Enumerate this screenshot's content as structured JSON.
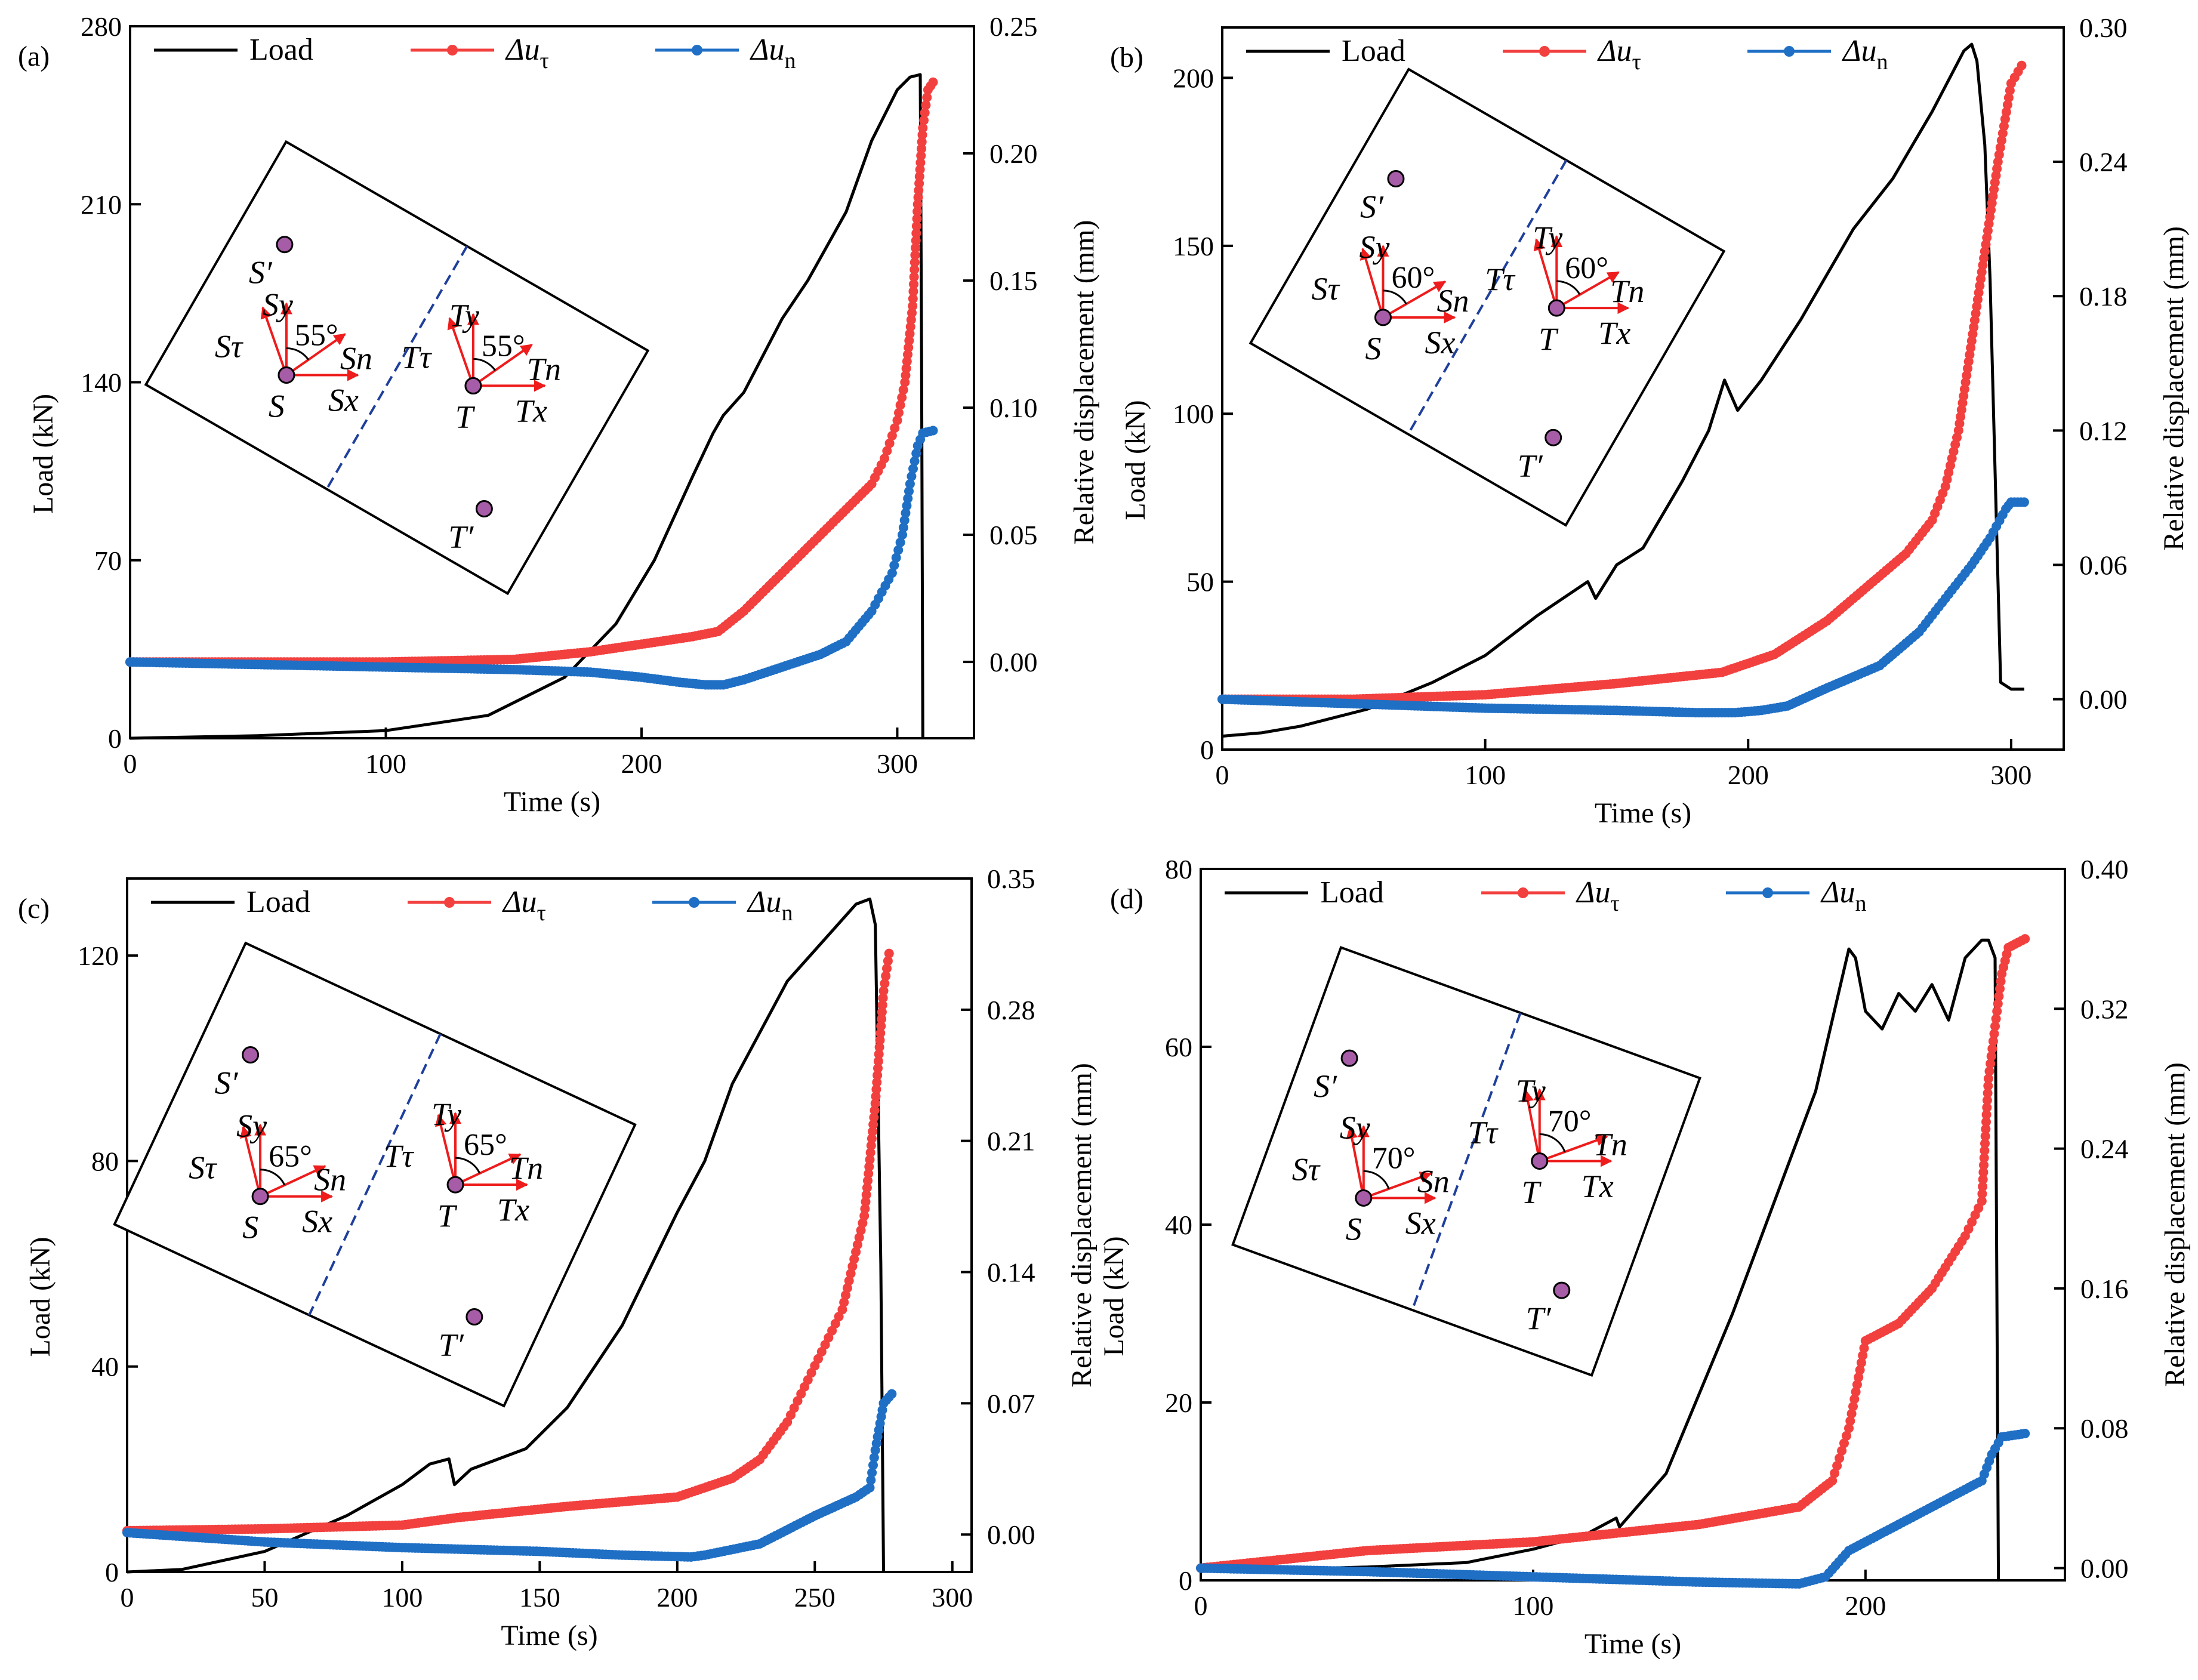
{
  "colors": {
    "load": "#000000",
    "du_t": "#f2403f",
    "du_n": "#1f6fc5",
    "arrow": "#ee1c1c",
    "point": "#a65ca6",
    "dash": "#1f3f9c"
  },
  "chart_data": [
    {
      "type": "line",
      "panel_label": "(a)",
      "xlabel": "Time (s)",
      "ylabel": "Load (kN)",
      "y2label": "Relative displacement (mm)",
      "xlim": [
        0,
        330
      ],
      "ylim": [
        0,
        280
      ],
      "y2lim": [
        -0.03,
        0.25
      ],
      "xticks": [
        0,
        100,
        200,
        300
      ],
      "yticks": [
        0,
        70,
        140,
        210,
        280
      ],
      "y2ticks": [
        0.0,
        0.05,
        0.1,
        0.15,
        0.2,
        0.25
      ],
      "y2tick_labels": [
        "0.00",
        "0.05",
        "0.10",
        "0.15",
        "0.20",
        "0.25"
      ],
      "legend": [
        "Load",
        "Δu",
        "Δu"
      ],
      "legend_subscripts": [
        "",
        "τ",
        "n"
      ],
      "angle_label": "55°",
      "series": [
        {
          "name": "Load",
          "axis": "left",
          "x": [
            0,
            50,
            100,
            140,
            170,
            190,
            205,
            220,
            228,
            232,
            240,
            255,
            265,
            280,
            290,
            300,
            305,
            309,
            309.5,
            310
          ],
          "y": [
            0,
            1,
            3,
            9,
            24,
            45,
            70,
            103,
            120,
            127,
            136,
            165,
            180,
            207,
            235,
            255,
            260,
            261,
            150,
            0
          ]
        },
        {
          "name": "Δuτ",
          "axis": "right",
          "x": [
            0,
            50,
            100,
            150,
            180,
            200,
            220,
            230,
            240,
            250,
            260,
            270,
            280,
            290,
            295,
            300,
            303,
            306,
            308,
            310,
            312,
            314
          ],
          "y": [
            0.0,
            0.0,
            0.0,
            0.001,
            0.004,
            0.007,
            0.01,
            0.012,
            0.02,
            0.03,
            0.04,
            0.05,
            0.06,
            0.07,
            0.08,
            0.095,
            0.11,
            0.14,
            0.18,
            0.21,
            0.225,
            0.228
          ]
        },
        {
          "name": "Δun",
          "axis": "right",
          "x": [
            0,
            50,
            100,
            150,
            180,
            200,
            215,
            225,
            232,
            240,
            255,
            270,
            280,
            290,
            298,
            302,
            305,
            308,
            310,
            314
          ],
          "y": [
            0.0,
            -0.001,
            -0.002,
            -0.003,
            -0.004,
            -0.006,
            -0.008,
            -0.009,
            -0.009,
            -0.007,
            -0.002,
            0.003,
            0.008,
            0.02,
            0.035,
            0.05,
            0.07,
            0.085,
            0.09,
            0.091
          ]
        }
      ]
    },
    {
      "type": "line",
      "panel_label": "(b)",
      "xlabel": "Time (s)",
      "ylabel": "Load (kN)",
      "y2label": "Relative displacement (mm)",
      "xlim": [
        0,
        320
      ],
      "ylim": [
        0,
        215
      ],
      "y2lim": [
        -0.0225,
        0.3
      ],
      "xticks": [
        0,
        100,
        200,
        300
      ],
      "yticks": [
        0,
        50,
        100,
        150,
        200
      ],
      "y2ticks": [
        0.0,
        0.06,
        0.12,
        0.18,
        0.24,
        0.3
      ],
      "y2tick_labels": [
        "0.00",
        "0.06",
        "0.12",
        "0.18",
        "0.24",
        "0.30"
      ],
      "legend": [
        "Load",
        "Δu",
        "Δu"
      ],
      "legend_subscripts": [
        "",
        "τ",
        "n"
      ],
      "angle_label": "60°",
      "series": [
        {
          "name": "Load",
          "axis": "left",
          "x": [
            0,
            15,
            30,
            55,
            80,
            100,
            120,
            139,
            142,
            150,
            160,
            175,
            185,
            191,
            196,
            205,
            220,
            240,
            255,
            270,
            282,
            285,
            287,
            290,
            292,
            294,
            296,
            300,
            305
          ],
          "y": [
            4,
            5,
            7,
            12,
            20,
            28,
            40,
            50,
            45,
            55,
            60,
            80,
            95,
            110,
            101,
            110,
            128,
            155,
            170,
            190,
            208,
            210,
            205,
            180,
            140,
            80,
            20,
            18,
            18
          ]
        },
        {
          "name": "Δuτ",
          "axis": "right",
          "x": [
            0,
            50,
            100,
            150,
            190,
            210,
            230,
            250,
            260,
            270,
            275,
            280,
            285,
            290,
            295,
            300,
            304
          ],
          "y": [
            0.0,
            0.0,
            0.002,
            0.007,
            0.012,
            0.02,
            0.035,
            0.055,
            0.065,
            0.08,
            0.095,
            0.12,
            0.16,
            0.2,
            0.24,
            0.275,
            0.283
          ]
        },
        {
          "name": "Δun",
          "axis": "right",
          "x": [
            0,
            50,
            100,
            150,
            180,
            195,
            205,
            215,
            230,
            250,
            265,
            275,
            285,
            292,
            298,
            300,
            305
          ],
          "y": [
            0.0,
            -0.002,
            -0.004,
            -0.005,
            -0.006,
            -0.006,
            -0.005,
            -0.003,
            0.005,
            0.015,
            0.03,
            0.045,
            0.06,
            0.072,
            0.085,
            0.088,
            0.088
          ]
        }
      ]
    },
    {
      "type": "line",
      "panel_label": "(c)",
      "xlabel": "Time (s)",
      "ylabel": "Load (kN)",
      "y2label": "Relative displacement (mm)",
      "xlim": [
        0,
        307
      ],
      "ylim": [
        0,
        135
      ],
      "y2lim": [
        -0.02,
        0.35
      ],
      "xticks": [
        0,
        50,
        100,
        150,
        200,
        250,
        300
      ],
      "yticks": [
        0,
        40,
        80,
        120
      ],
      "y2ticks": [
        0.0,
        0.07,
        0.14,
        0.21,
        0.28,
        0.35
      ],
      "y2tick_labels": [
        "0.00",
        "0.07",
        "0.14",
        "0.21",
        "0.28",
        "0.35"
      ],
      "legend": [
        "Load",
        "Δu",
        "Δu"
      ],
      "legend_subscripts": [
        "",
        "τ",
        "n"
      ],
      "angle_label": "65°",
      "series": [
        {
          "name": "Load",
          "axis": "left",
          "x": [
            0,
            20,
            50,
            80,
            100,
            110,
            117,
            119,
            125,
            140,
            145,
            160,
            180,
            200,
            210,
            220,
            240,
            255,
            265,
            270,
            272,
            274,
            275
          ],
          "y": [
            0,
            0.5,
            4,
            11,
            17,
            21,
            22,
            17,
            20,
            23,
            24,
            32,
            48,
            70,
            80,
            95,
            115,
            124,
            130,
            131,
            126,
            60,
            0
          ]
        },
        {
          "name": "Δuτ",
          "axis": "right",
          "x": [
            0,
            50,
            100,
            120,
            160,
            200,
            220,
            230,
            240,
            250,
            260,
            268,
            272,
            275,
            277
          ],
          "y": [
            0.002,
            0.003,
            0.005,
            0.009,
            0.015,
            0.02,
            0.03,
            0.04,
            0.06,
            0.09,
            0.12,
            0.17,
            0.23,
            0.29,
            0.31
          ]
        },
        {
          "name": "Δun",
          "axis": "right",
          "x": [
            0,
            50,
            100,
            150,
            180,
            205,
            210,
            230,
            250,
            265,
            270,
            272,
            275,
            278
          ],
          "y": [
            0.001,
            -0.004,
            -0.007,
            -0.009,
            -0.011,
            -0.012,
            -0.011,
            -0.005,
            0.01,
            0.02,
            0.025,
            0.045,
            0.07,
            0.075
          ]
        }
      ]
    },
    {
      "type": "line",
      "panel_label": "(d)",
      "xlabel": "Time (s)",
      "ylabel": "Load (kN)",
      "y2label": "Relative displacement (mm)",
      "xlim": [
        0,
        260
      ],
      "ylim": [
        0,
        80
      ],
      "y2lim": [
        -0.007,
        0.4
      ],
      "xticks": [
        0,
        100,
        200
      ],
      "yticks": [
        0,
        20,
        40,
        60,
        80
      ],
      "y2ticks": [
        0.0,
        0.08,
        0.16,
        0.24,
        0.32,
        0.4
      ],
      "y2tick_labels": [
        "0.00",
        "0.08",
        "0.16",
        "0.24",
        "0.32",
        "0.40"
      ],
      "legend": [
        "Load",
        "Δu",
        "Δu"
      ],
      "legend_subscripts": [
        "",
        "τ",
        "n"
      ],
      "angle_label": "70°",
      "series": [
        {
          "name": "Load",
          "axis": "left",
          "x": [
            0,
            50,
            80,
            100,
            115,
            125,
            126,
            140,
            160,
            175,
            185,
            195,
            197,
            200,
            205,
            210,
            215,
            220,
            225,
            230,
            235,
            237,
            239,
            240
          ],
          "y": [
            1,
            1.5,
            2,
            3.5,
            5,
            7,
            6,
            12,
            30,
            45,
            55,
            71,
            70,
            64,
            62,
            66,
            64,
            67,
            63,
            70,
            72,
            72,
            70,
            0
          ]
        },
        {
          "name": "Δuτ",
          "axis": "right",
          "x": [
            0,
            50,
            100,
            150,
            180,
            190,
            195,
            200,
            210,
            220,
            225,
            230,
            235,
            237,
            239,
            241,
            243,
            248
          ],
          "y": [
            0.0,
            0.01,
            0.015,
            0.025,
            0.035,
            0.05,
            0.08,
            0.13,
            0.14,
            0.16,
            0.175,
            0.19,
            0.21,
            0.28,
            0.31,
            0.34,
            0.355,
            0.36
          ]
        },
        {
          "name": "Δun",
          "axis": "right",
          "x": [
            0,
            50,
            100,
            150,
            180,
            188,
            195,
            200,
            210,
            220,
            230,
            235,
            238,
            241,
            248
          ],
          "y": [
            0.0,
            -0.002,
            -0.005,
            -0.008,
            -0.009,
            -0.005,
            0.01,
            0.015,
            0.025,
            0.035,
            0.045,
            0.05,
            0.065,
            0.075,
            0.077
          ]
        }
      ]
    }
  ]
}
